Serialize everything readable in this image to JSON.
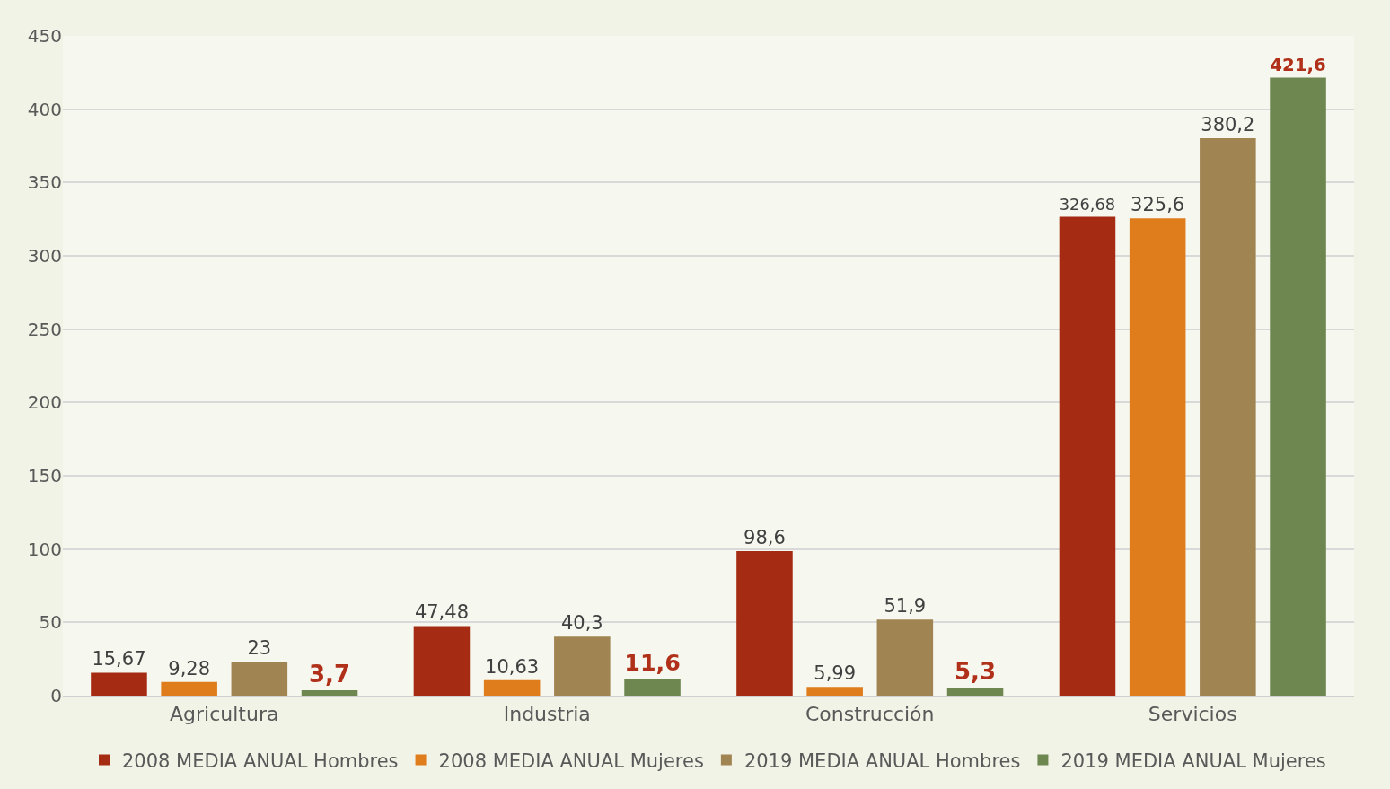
{
  "chart_data": {
    "type": "bar",
    "categories": [
      "Agricultura",
      "Industria",
      "Construcción",
      "Servicios"
    ],
    "series": [
      {
        "name": "2008 MEDIA ANUAL Hombres",
        "color": "#a52c12",
        "values": [
          15.67,
          47.48,
          98.6,
          326.68
        ],
        "value_labels": [
          "15,67",
          "47,48",
          "98,6",
          "326,68"
        ]
      },
      {
        "name": "2008 MEDIA ANUAL Mujeres",
        "color": "#df7c1b",
        "values": [
          9.28,
          10.63,
          5.99,
          325.6
        ],
        "value_labels": [
          "9,28",
          "10,63",
          "5,99",
          "325,6"
        ]
      },
      {
        "name": "2019 MEDIA ANUAL Hombres",
        "color": "#a08452",
        "values": [
          23,
          40.3,
          51.9,
          380.2
        ],
        "value_labels": [
          "23",
          "40,3",
          "51,9",
          "380,2"
        ]
      },
      {
        "name": "2019 MEDIA ANUAL Mujeres",
        "color": "#6e8751",
        "values": [
          3.7,
          11.6,
          5.3,
          421.6
        ],
        "value_labels": [
          "3,7",
          "11,6",
          "5,3",
          "421,6"
        ]
      }
    ],
    "ylim": [
      0,
      450
    ],
    "yticks": [
      0,
      50,
      100,
      150,
      200,
      250,
      300,
      350,
      400,
      450
    ],
    "grid": "y",
    "legend": "bottom"
  }
}
